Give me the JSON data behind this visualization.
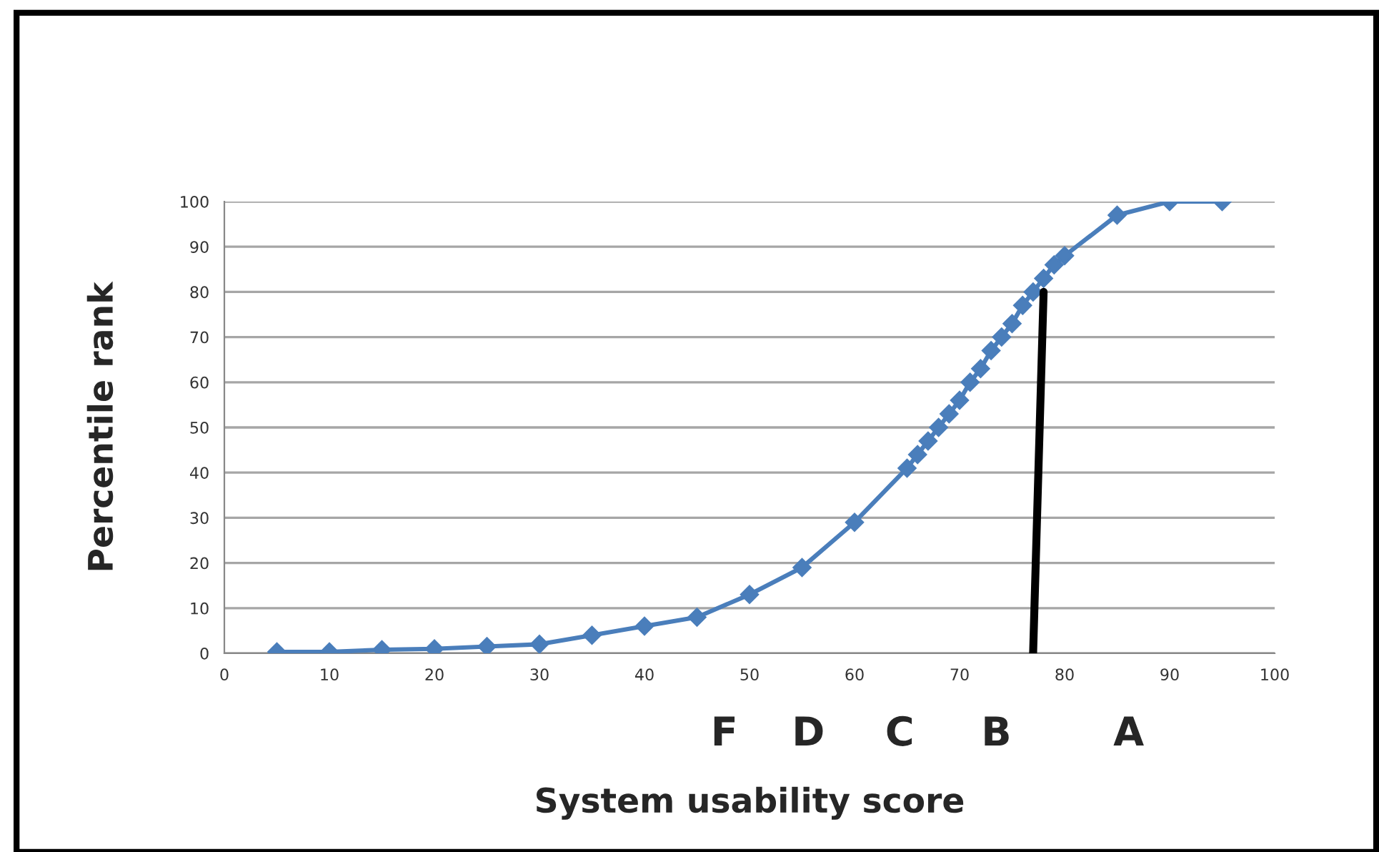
{
  "chart_data": {
    "type": "line",
    "xlabel": "System usability score",
    "ylabel": "Percentile rank",
    "xlim": [
      0,
      100
    ],
    "xticks": [
      0,
      10,
      20,
      30,
      40,
      50,
      60,
      70,
      80,
      90,
      100
    ],
    "ylim": [
      0,
      100
    ],
    "yticks": [
      0,
      10,
      20,
      30,
      40,
      50,
      60,
      70,
      80,
      90,
      100
    ],
    "grid": "y",
    "series": [
      {
        "color": "#4a7ebb",
        "marker": "diamond",
        "x": [
          5,
          10,
          15,
          20,
          25,
          30,
          35,
          40,
          45,
          50,
          55,
          60,
          65,
          66,
          67,
          68,
          69,
          70,
          71,
          72,
          73,
          74,
          75,
          76,
          77,
          78,
          79,
          80,
          85,
          90,
          95
        ],
        "values": [
          0.3,
          0.3,
          0.8,
          1,
          1.5,
          2,
          4,
          6,
          8,
          13,
          19,
          29,
          41,
          44,
          47,
          50,
          53,
          56,
          60,
          63,
          67,
          70,
          73,
          77,
          80,
          83,
          86,
          88,
          97,
          100,
          100
        ]
      },
      {
        "type": "line",
        "color": "#000000",
        "marker": "none",
        "x": [
          77,
          78
        ],
        "values": [
          0,
          80
        ]
      }
    ],
    "annotations": [
      "F",
      "D",
      "C",
      "B",
      "A"
    ]
  }
}
